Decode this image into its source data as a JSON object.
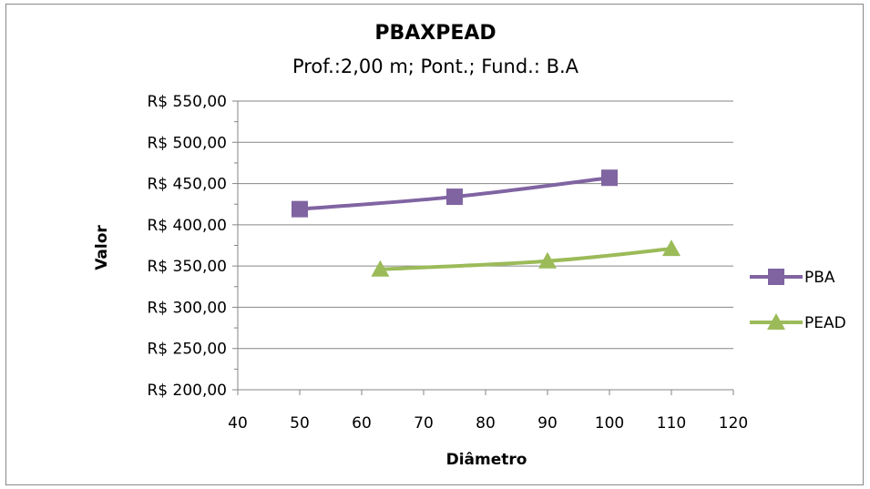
{
  "chart_data": {
    "type": "scatter",
    "title": "PBAXPEAD",
    "subtitle": "Prof.:2,00 m; Pont.; Fund.: B.A",
    "xlabel": "Diâmetro",
    "ylabel": "Valor",
    "xlim": [
      40,
      120
    ],
    "ylim": [
      200,
      550
    ],
    "x_major_step": 10,
    "y_major_step": 50,
    "y_minor_step": 25,
    "grid": "horizontal-major",
    "legend_position": "right",
    "smooth_lines": true,
    "series": [
      {
        "name": "PBA",
        "marker": "square",
        "color": "#8064A2",
        "points": [
          [
            50,
            419
          ],
          [
            75,
            434
          ],
          [
            100,
            457
          ]
        ]
      },
      {
        "name": "PEAD",
        "marker": "triangle",
        "color": "#9BBB59",
        "points": [
          [
            63,
            346
          ],
          [
            90,
            356
          ],
          [
            110,
            371
          ]
        ]
      }
    ],
    "x_tick_labels": [
      "40",
      "50",
      "60",
      "70",
      "80",
      "90",
      "100",
      "110",
      "120"
    ],
    "y_tick_labels": [
      "R$ 200,00",
      "R$ 250,00",
      "R$ 300,00",
      "R$ 350,00",
      "R$ 400,00",
      "R$ 450,00",
      "R$ 500,00",
      "R$ 550,00"
    ]
  }
}
